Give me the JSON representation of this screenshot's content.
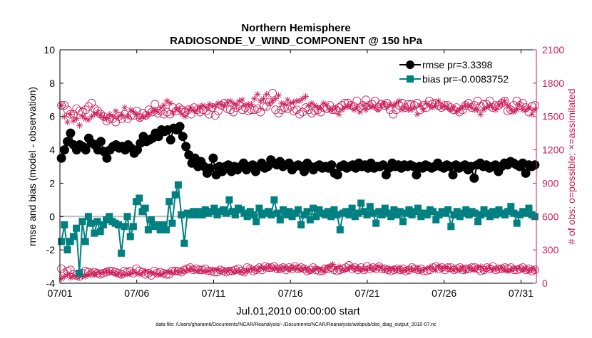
{
  "title_line1": "Northern Hemisphere",
  "title_line2": "RADIOSONDE_V_WIND_COMPONENT @ 150 hPa",
  "xlabel": "Jul.01,2010 00:00:00 start",
  "ylabel_left": "rmse and bias (model - observation)",
  "ylabel_right": "# of obs: o=possible; ×=assimilated",
  "footer": "data file: /Users/gharamti/Documents/NCAR/Reanalysis/~/Documents/NCAR/Reanalysis/webpub/obs_diag_output_2010-07.nc",
  "legend": {
    "rmse": "rmse pr=3.3398",
    "bias": "bias pr=-0.0083752"
  },
  "colors": {
    "rmse": "#000000",
    "bias": "#008080",
    "obs": "#cc1f5a",
    "zero_line": "#bdbdbd",
    "axis": "#000000"
  },
  "chart_data": {
    "type": "line",
    "x_unit": "day of July 2010 (1.0 = 07/01 00:00)",
    "xlim": [
      1,
      32
    ],
    "ylim_left": [
      -4,
      10
    ],
    "ylim_right": [
      0,
      2100
    ],
    "xticks": [
      1,
      6,
      11,
      16,
      21,
      26,
      31
    ],
    "xtick_labels": [
      "07/01",
      "07/06",
      "07/11",
      "07/16",
      "07/21",
      "07/26",
      "07/31"
    ],
    "yticks_left": [
      -4,
      -2,
      0,
      2,
      4,
      6,
      8,
      10
    ],
    "yticks_left_labels": [
      "-4",
      "-2",
      "0",
      "2",
      "4",
      "6",
      "8",
      "10"
    ],
    "yticks_right": [
      0,
      300,
      600,
      900,
      1200,
      1500,
      1800,
      2100
    ],
    "yticks_right_labels": [
      "0",
      "300",
      "600",
      "900",
      "1200",
      "1500",
      "1800",
      "2100"
    ],
    "series": [
      {
        "name": "rmse",
        "axis": "left",
        "values": [
          3.5,
          4.0,
          4.5,
          5.0,
          4.3,
          4.0,
          4.3,
          4.2,
          4.0,
          4.7,
          4.4,
          4.3,
          4.0,
          4.5,
          3.9,
          3.5,
          4.0,
          4.2,
          4.3,
          4.1,
          4.2,
          4.0,
          4.3,
          4.1,
          3.8,
          4.0,
          4.4,
          4.8,
          4.5,
          4.6,
          4.7,
          5.0,
          4.8,
          5.2,
          5.1,
          5.2,
          4.6,
          5.3,
          5.2,
          5.4,
          4.8,
          4.2,
          3.7,
          3.2,
          3.5,
          3.0,
          3.3,
          3.0,
          2.6,
          2.9,
          3.5,
          2.5,
          3.0,
          2.7,
          3.0,
          3.1,
          2.7,
          3.0,
          2.8,
          3.0,
          3.2,
          2.8,
          3.0,
          3.1,
          2.7,
          3.0,
          3.2,
          2.9,
          3.0,
          3.4,
          3.2,
          3.1,
          3.3,
          3.0,
          3.1,
          3.2,
          2.8,
          3.0,
          3.1,
          3.0,
          2.7,
          3.2,
          3.0,
          2.8,
          3.0,
          3.1,
          2.9,
          3.0,
          2.9,
          3.1,
          2.6,
          2.5,
          3.0,
          3.1,
          2.9,
          3.0,
          3.1,
          2.9,
          3.2,
          3.0,
          3.1,
          2.9,
          3.2,
          2.9,
          3.0,
          3.0,
          3.1,
          2.5,
          2.9,
          3.2,
          3.0,
          3.1,
          2.9,
          3.1,
          3.0,
          3.1,
          3.0,
          2.5,
          3.0,
          2.9,
          3.1,
          3.0,
          2.9,
          3.0,
          3.2,
          3.0,
          2.9,
          3.1,
          3.0,
          2.5,
          3.1,
          2.9,
          3.0,
          3.1,
          2.8,
          3.0,
          2.3,
          3.1,
          3.2,
          3.0,
          3.1,
          2.9,
          3.0,
          3.1,
          2.7,
          3.0,
          3.2,
          3.1,
          3.3,
          3.2,
          3.1,
          3.0,
          3.2,
          2.6,
          3.1,
          3.0,
          3.1
        ]
      },
      {
        "name": "bias",
        "axis": "left",
        "values": [
          -1.5,
          -0.5,
          -2.0,
          -1.5,
          -1.2,
          -0.7,
          -3.4,
          -0.3,
          -1.5,
          0.0,
          -0.4,
          -1.0,
          -0.3,
          -0.9,
          -0.5,
          -0.2,
          0.0,
          -0.3,
          -0.4,
          -0.5,
          -2.2,
          -0.6,
          0.0,
          -1.2,
          -0.6,
          0.9,
          1.1,
          0.3,
          0.5,
          -0.8,
          -0.2,
          -0.6,
          -0.5,
          -0.8,
          -0.5,
          -0.8,
          0.9,
          -0.4,
          1.3,
          1.9,
          0.1,
          -1.6,
          0.2,
          0.1,
          0.3,
          0.1,
          0.3,
          0.1,
          0.4,
          0.2,
          0.3,
          0.5,
          0.1,
          0.3,
          0.4,
          0.2,
          1.0,
          0.3,
          0.1,
          0.5,
          0.4,
          0.2,
          0.0,
          0.3,
          0.1,
          -0.3,
          0.5,
          0.1,
          0.2,
          0.3,
          0.1,
          1.0,
          0.2,
          -0.2,
          0.4,
          0.1,
          0.3,
          0.0,
          0.2,
          0.4,
          -0.5,
          0.1,
          0.3,
          -0.2,
          0.5,
          0.0,
          0.4,
          0.2,
          0.1,
          0.3,
          0.0,
          0.4,
          0.1,
          -0.8,
          0.2,
          0.3,
          0.1,
          0.5,
          0.0,
          0.2,
          0.8,
          0.3,
          0.1,
          0.6,
          0.2,
          -0.4,
          0.3,
          0.1,
          0.5,
          0.2,
          0.0,
          0.4,
          0.1,
          0.3,
          -0.3,
          0.2,
          0.4,
          0.1,
          0.3,
          0.5,
          0.0,
          0.2,
          0.1,
          0.4,
          0.3,
          -0.2,
          0.1,
          0.3,
          0.2,
          0.4,
          -0.6,
          0.1,
          0.3,
          0.0,
          0.2,
          0.4,
          0.1,
          0.3,
          0.2,
          -0.3,
          0.1,
          0.4,
          0.2,
          0.0,
          0.3,
          0.1,
          0.4,
          0.2,
          0.1,
          0.3,
          0.6,
          0.2,
          -0.4,
          0.1,
          0.3,
          0.2,
          0.5,
          0.1,
          0.0
        ]
      },
      {
        "name": "rmse_possible",
        "axis": "right",
        "values": [
          1600,
          1600,
          1560,
          1520,
          1520,
          1570,
          1550,
          1540,
          1560,
          1590,
          1620,
          1570,
          1550,
          1520,
          1500,
          1460,
          1480,
          1480,
          1450,
          1500,
          1480,
          1520,
          1480,
          1510,
          1510,
          1550,
          1490,
          1530,
          1510,
          1560,
          1540,
          1610,
          1530,
          1550,
          1520,
          1540,
          1520,
          1580,
          1550,
          1580,
          1560,
          1540,
          1560,
          1520,
          1580,
          1560,
          1540,
          1560,
          1550,
          1520,
          1580,
          1510,
          1550,
          1600,
          1620,
          1570,
          1560,
          1540,
          1580,
          1600,
          1560,
          1580,
          1550,
          1560,
          1560,
          1570,
          1540,
          1590,
          1590,
          1630,
          1710,
          1560,
          1530,
          1560,
          1580,
          1570,
          1590,
          1550,
          1560,
          1520,
          1540,
          1580,
          1560,
          1530,
          1550,
          1560,
          1540,
          1580,
          1570,
          1600,
          1560,
          1560,
          1580,
          1600,
          1620,
          1620,
          1600,
          1590,
          1640,
          1580,
          1600,
          1650,
          1600,
          1610,
          1640,
          1580,
          1610,
          1600,
          1620,
          1560,
          1520,
          1560,
          1600,
          1620,
          1580,
          1610,
          1610,
          1600,
          1620,
          1560,
          1600,
          1580,
          1640,
          1610,
          1620,
          1600,
          1580,
          1600,
          1600,
          1580,
          1560,
          1580,
          1540,
          1560,
          1600,
          1620,
          1580,
          1600,
          1640,
          1590,
          1610,
          1610,
          1640,
          1580,
          1600,
          1600,
          1620,
          1640,
          1550,
          1560,
          1600,
          1640,
          1600,
          1620,
          1580,
          1540,
          1590,
          1600
        ]
      },
      {
        "name": "rmse_assimilated",
        "axis": "right",
        "values": [
          1600,
          1500,
          1450,
          1520,
          1460,
          1480,
          1420,
          1500,
          1480,
          1470,
          1500,
          1520,
          1540,
          1510,
          1490,
          1480,
          1520,
          1500,
          1550,
          1500,
          1520,
          1580,
          1500,
          1560,
          1540,
          1520,
          1480,
          1500,
          1500,
          1520,
          1540,
          1560,
          1540,
          1580,
          1600,
          1640,
          1620,
          1530,
          1560,
          1570,
          1520,
          1500,
          1560,
          1580,
          1550,
          1560,
          1590,
          1600,
          1580,
          1610,
          1590,
          1600,
          1620,
          1610,
          1600,
          1630,
          1640,
          1620,
          1600,
          1640,
          1650,
          1600,
          1610,
          1610,
          1660,
          1700,
          1640,
          1660,
          1700,
          1620,
          1640,
          1660,
          1690,
          1620,
          1610,
          1650,
          1620,
          1630,
          1640,
          1640,
          1660,
          1680,
          1600,
          1620,
          1600,
          1580,
          1580,
          1620,
          1600,
          1560,
          1560,
          1580,
          1520,
          1560,
          1580,
          1590,
          1600,
          1560,
          1580,
          1540,
          1600,
          1560,
          1600,
          1590,
          1580,
          1560,
          1600,
          1620,
          1580,
          1610,
          1600,
          1620,
          1640,
          1560,
          1580,
          1560,
          1560,
          1580,
          1520,
          1600,
          1560,
          1620,
          1600,
          1580,
          1600,
          1640,
          1580,
          1600,
          1580,
          1560,
          1580,
          1540,
          1560,
          1580,
          1600,
          1600,
          1580,
          1560,
          1560,
          1520,
          1560,
          1580,
          1600,
          1580,
          1560,
          1600,
          1620,
          1640,
          1600,
          1560,
          1540,
          1560,
          1600,
          1560,
          1560,
          1580,
          1520,
          1560
        ]
      },
      {
        "name": "bias_possible",
        "axis": "right",
        "values": [
          130,
          90,
          110,
          120,
          80,
          70,
          60,
          90,
          110,
          100,
          90,
          100,
          90,
          80,
          90,
          100,
          110,
          110,
          100,
          90,
          80,
          110,
          100,
          110,
          90,
          130,
          110,
          100,
          80,
          90,
          70,
          110,
          90,
          100,
          90,
          80,
          80,
          110,
          110,
          110,
          100,
          120,
          130,
          140,
          120,
          130,
          120,
          120,
          130,
          110,
          110,
          100,
          100,
          120,
          110,
          100,
          110,
          110,
          120,
          130,
          110,
          100,
          140,
          130,
          110,
          120,
          140,
          120,
          150,
          140,
          140,
          150,
          130,
          130,
          140,
          120,
          140,
          130,
          150,
          130,
          140,
          130,
          110,
          120,
          140,
          120,
          110,
          110,
          130,
          130,
          140,
          120,
          110,
          120,
          130,
          140,
          160,
          130,
          140,
          120,
          140,
          120,
          150,
          130,
          140,
          130,
          150,
          130,
          130,
          120,
          110,
          120,
          130,
          120,
          130,
          110,
          120,
          140,
          130,
          120,
          130,
          110,
          110,
          120,
          140,
          150,
          130,
          140,
          120,
          140,
          140,
          120,
          130,
          140,
          120,
          130,
          130,
          140,
          140,
          130,
          110,
          120,
          140,
          130,
          150,
          120,
          130,
          130,
          140,
          130,
          140,
          120,
          120,
          130,
          140,
          120,
          130,
          110,
          120
        ]
      },
      {
        "name": "bias_assimilated",
        "axis": "right",
        "values": [
          40,
          60,
          80,
          50,
          70,
          60,
          60,
          70,
          60,
          80,
          90,
          80,
          100,
          90,
          100,
          110,
          100,
          100,
          80,
          90,
          70,
          80,
          80,
          90,
          100,
          90,
          80,
          100,
          110,
          100,
          90,
          90,
          80,
          80,
          90,
          100,
          100,
          90,
          110,
          100,
          110,
          110,
          120,
          130,
          120,
          110,
          120,
          110,
          110,
          110,
          120,
          120,
          120,
          110,
          110,
          110,
          120,
          100,
          110,
          110,
          100,
          100,
          120,
          130,
          120,
          120,
          140,
          130,
          140,
          140,
          130,
          140,
          120,
          140,
          140,
          130,
          130,
          140,
          140,
          120,
          130,
          130,
          110,
          110,
          130,
          130,
          120,
          110,
          140,
          150,
          170,
          130,
          150,
          120,
          120,
          130,
          150,
          130,
          140,
          120,
          130,
          120,
          140,
          130,
          130,
          150,
          140,
          120,
          130,
          120,
          130,
          120,
          130,
          110,
          120,
          120,
          130,
          120,
          130,
          110,
          120,
          130,
          140,
          140,
          120,
          150,
          130,
          140,
          140,
          130,
          120,
          130,
          120,
          140,
          110,
          140,
          130,
          120,
          140,
          150,
          120,
          130,
          140,
          120,
          130,
          130,
          140,
          120,
          110,
          120,
          130,
          130,
          140,
          120,
          130,
          110,
          130,
          120
        ]
      }
    ]
  }
}
